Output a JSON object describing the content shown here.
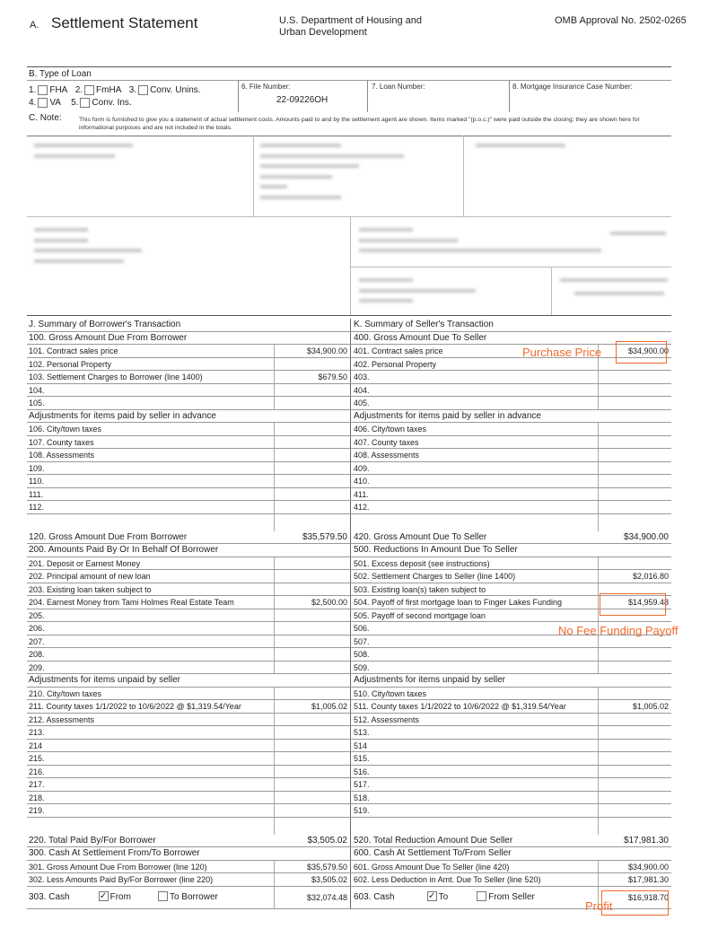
{
  "header": {
    "section": "A.",
    "title": "Settlement Statement",
    "agency": "U.S. Department of Housing and Urban Development",
    "omb": "OMB Approval No. 2502-0265"
  },
  "loan_type": {
    "label": "B. Type of Loan",
    "options": [
      {
        "num": "1.",
        "label": "FHA",
        "checked": false
      },
      {
        "num": "2.",
        "label": "FmHA",
        "checked": false
      },
      {
        "num": "3.",
        "label": "Conv. Unins.",
        "checked": false
      },
      {
        "num": "4.",
        "label": "VA",
        "checked": false
      },
      {
        "num": "5.",
        "label": "Conv. Ins.",
        "checked": false
      }
    ],
    "file_number_label": "6. File Number:",
    "file_number": "22-09226OH",
    "loan_number_label": "7. Loan Number:",
    "mic_label": "8. Mortgage Insurance Case Number:"
  },
  "note": {
    "label": "C. Note:",
    "text": "This form is furnished to give you a statement of actual settlement costs. Amounts paid to and by the settlement agent are shown. Items marked \"(p.o.c.)\" were paid outside the closing; they are shown here for informational purposes and are not included in the totals."
  },
  "rows": [
    {
      "t": "sec",
      "l": "J. Summary of Borrower's Transaction",
      "r": "K. Summary of Seller's Transaction"
    },
    {
      "t": "sec",
      "l": "100. Gross Amount Due From Borrower",
      "r": "400. Gross Amount Due To Seller"
    },
    {
      "l": "101. Contract sales price",
      "la": "$34,900.00",
      "r": "401. Contract sales price",
      "ra": "$34,900.00"
    },
    {
      "l": "102. Personal Property",
      "r": "402. Personal Property"
    },
    {
      "l": "103. Settlement Charges to Borrower (line 1400)",
      "la": "$679.50",
      "r": "403."
    },
    {
      "l": "104.",
      "r": "404."
    },
    {
      "l": "105.",
      "r": "405."
    },
    {
      "t": "sec",
      "l": "Adjustments for items paid by seller in advance",
      "r": "Adjustments for items paid by seller in advance"
    },
    {
      "l": "106. City/town taxes",
      "r": "406. City/town taxes"
    },
    {
      "l": "107. County taxes",
      "r": "407. County taxes"
    },
    {
      "l": "108. Assessments",
      "r": "408. Assessments"
    },
    {
      "l": "109.",
      "r": "409."
    },
    {
      "l": "110.",
      "r": "410."
    },
    {
      "l": "111.",
      "r": "411."
    },
    {
      "l": "112.",
      "r": "412."
    },
    {
      "t": "spacer"
    },
    {
      "t": "sec",
      "l": "120. Gross Amount Due From Borrower",
      "la": "$35,579.50",
      "r": "420. Gross Amount Due To Seller",
      "ra": "$34,900.00",
      "box": true
    },
    {
      "t": "sec",
      "l": "200. Amounts Paid By Or In Behalf Of Borrower",
      "r": "500. Reductions In Amount Due To Seller"
    },
    {
      "l": "201. Deposit or Earnest Money",
      "r": "501. Excess deposit (see instructions)"
    },
    {
      "l": "202. Principal amount of new loan",
      "r": "502. Settlement Charges to Seller (line 1400)",
      "ra": "$2,016.80"
    },
    {
      "l": "203. Existing loan taken subject to",
      "r": "503. Existing loan(s) taken subject to"
    },
    {
      "l": "204. Earnest Money from Tami Holmes Real Estate Team",
      "la": "$2,500.00",
      "r": "504. Payoff of first mortgage loan to Finger Lakes Funding",
      "ra": "$14,959.48"
    },
    {
      "l": "205.",
      "r": "505. Payoff of second mortgage loan"
    },
    {
      "l": "206.",
      "r": "506."
    },
    {
      "l": "207.",
      "r": "507."
    },
    {
      "l": "208.",
      "r": "508."
    },
    {
      "l": "209.",
      "r": "509."
    },
    {
      "t": "sec",
      "l": "Adjustments for items unpaid by seller",
      "r": "Adjustments for items unpaid by seller"
    },
    {
      "l": "210. City/town taxes",
      "r": "510. City/town taxes"
    },
    {
      "l": "211. County taxes 1/1/2022 to 10/6/2022 @ $1,319.54/Year",
      "la": "$1,005.02",
      "r": "511. County taxes 1/1/2022 to 10/6/2022 @ $1,319.54/Year",
      "ra": "$1,005.02"
    },
    {
      "l": "212. Assessments",
      "r": "512. Assessments"
    },
    {
      "l": "213.",
      "r": "513."
    },
    {
      "l": "214",
      "r": "514"
    },
    {
      "l": "215.",
      "r": "515."
    },
    {
      "l": "216.",
      "r": "516."
    },
    {
      "l": "217.",
      "r": "517."
    },
    {
      "l": "218.",
      "r": "518."
    },
    {
      "l": "219.",
      "r": "519."
    },
    {
      "t": "spacer"
    },
    {
      "t": "sec",
      "l": "220. Total Paid By/For Borrower",
      "la": "$3,505.02",
      "r": "520. Total Reduction Amount Due Seller",
      "ra": "$17,981.30",
      "box": true
    },
    {
      "t": "sec",
      "l": "300. Cash At Settlement From/To Borrower",
      "r": "600. Cash At Settlement To/From Seller"
    },
    {
      "l": "301. Gross Amount Due From Borrower (line 120)",
      "la": "$35,579.50",
      "r": "601. Gross Amount Due To Seller (line 420)",
      "ra": "$34,900.00"
    },
    {
      "l": "302. Less Amounts Paid By/For Borrower (line 220)",
      "la": "$3,505.02",
      "r": "602. Less Deduction in Amt. Due To Seller (line 520)",
      "ra": "$17,981.30"
    }
  ],
  "cash_row": {
    "left_label": "303. Cash",
    "left_from": "From",
    "left_from_checked": true,
    "left_to": "To Borrower",
    "left_to_checked": false,
    "left_amount": "$32,074.48",
    "right_label": "603. Cash",
    "right_to": "To",
    "right_to_checked": true,
    "right_from": "From Seller",
    "right_from_checked": false,
    "right_amount": "$16,918.70"
  },
  "annotations": {
    "purchase_price": "Purchase Price",
    "payoff": "No Fee Funding Payoff",
    "profit": "Profit",
    "color": "#f26a2a"
  }
}
